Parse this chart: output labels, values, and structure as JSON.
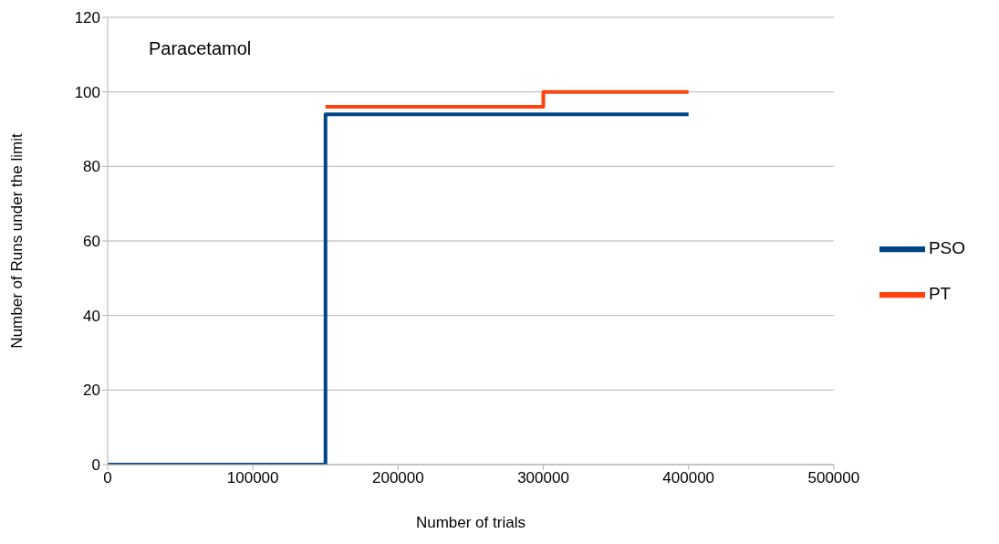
{
  "chart_data": {
    "type": "step",
    "title": "Paracetamol",
    "xlabel": "Number of trials",
    "ylabel": "Number of Runs under the limit",
    "series": [
      {
        "name": "PSO",
        "color": "#004586",
        "x": [
          0,
          150000,
          400000
        ],
        "values": [
          0,
          94,
          94
        ]
      },
      {
        "name": "PT",
        "color": "#ff420e",
        "x": [
          150000,
          300000,
          400000
        ],
        "values": [
          96,
          100,
          100
        ]
      }
    ],
    "xlim": [
      0,
      500000
    ],
    "xticks": [
      0,
      100000,
      200000,
      300000,
      400000,
      500000
    ],
    "ylim": [
      0,
      120
    ],
    "yticks": [
      0,
      20,
      40,
      60,
      80,
      100,
      120
    ],
    "grid": "y",
    "legend": "right",
    "marker": "none",
    "line_style": "solid"
  }
}
